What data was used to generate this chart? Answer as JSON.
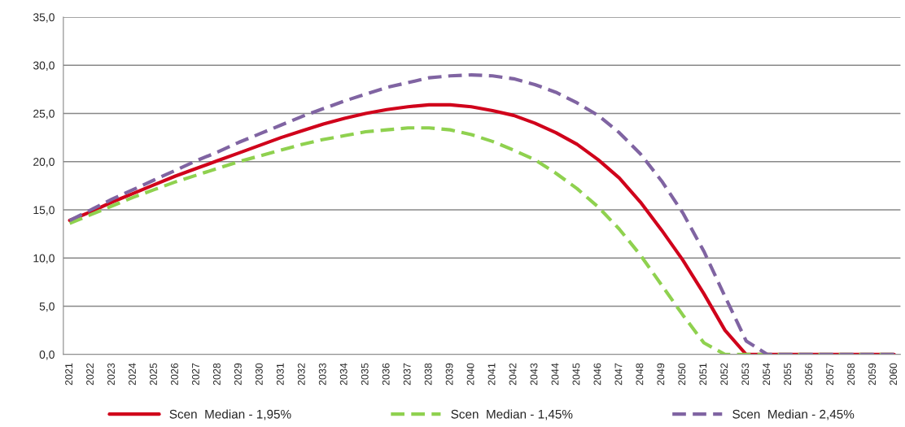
{
  "chart_data": {
    "type": "line",
    "categories": [
      "2021",
      "2022",
      "2023",
      "2024",
      "2025",
      "2026",
      "2027",
      "2028",
      "2029",
      "2030",
      "2031",
      "2032",
      "2033",
      "2034",
      "2035",
      "2036",
      "2037",
      "2038",
      "2039",
      "2040",
      "2041",
      "2042",
      "2043",
      "2044",
      "2045",
      "2046",
      "2047",
      "2048",
      "2049",
      "2050",
      "2051",
      "2052",
      "2053",
      "2054",
      "2055",
      "2056",
      "2057",
      "2058",
      "2059",
      "2060"
    ],
    "series": [
      {
        "name": "Scen  Median - 1,95%",
        "color": "#d0021b",
        "line_style": "solid",
        "values": [
          13.9,
          14.8,
          15.8,
          16.7,
          17.6,
          18.5,
          19.3,
          20.1,
          20.9,
          21.7,
          22.5,
          23.2,
          23.9,
          24.5,
          25.0,
          25.4,
          25.7,
          25.9,
          25.9,
          25.7,
          25.3,
          24.8,
          24.0,
          23.0,
          21.8,
          20.2,
          18.3,
          15.8,
          12.9,
          9.8,
          6.3,
          2.5,
          0,
          0,
          0,
          0,
          0,
          0,
          0,
          0
        ]
      },
      {
        "name": "Scen  Median - 1,45%",
        "color": "#8fd14f",
        "line_style": "dashed",
        "values": [
          13.6,
          14.5,
          15.4,
          16.3,
          17.1,
          17.9,
          18.6,
          19.3,
          20.0,
          20.6,
          21.2,
          21.8,
          22.3,
          22.7,
          23.1,
          23.3,
          23.5,
          23.5,
          23.3,
          22.8,
          22.1,
          21.2,
          20.2,
          18.8,
          17.2,
          15.3,
          13.0,
          10.3,
          7.2,
          4.1,
          1.2,
          0,
          0,
          0,
          0,
          0,
          0,
          0,
          0,
          0
        ]
      },
      {
        "name": "Scen  Median - 2,45%",
        "color": "#8064a2",
        "line_style": "dashed",
        "values": [
          13.9,
          15.0,
          16.1,
          17.1,
          18.1,
          19.1,
          20.1,
          21.0,
          22.0,
          22.9,
          23.8,
          24.7,
          25.5,
          26.3,
          27.0,
          27.7,
          28.2,
          28.7,
          28.9,
          29.0,
          28.9,
          28.6,
          28.0,
          27.2,
          26.1,
          24.8,
          23.0,
          20.8,
          18.0,
          14.7,
          10.7,
          6.0,
          1.4,
          0,
          0,
          0,
          0,
          0,
          0,
          0
        ]
      }
    ],
    "ylim": [
      0,
      35
    ],
    "yticks": [
      {
        "value": 0,
        "label": "0,0"
      },
      {
        "value": 5,
        "label": "5,0"
      },
      {
        "value": 10,
        "label": "10,0"
      },
      {
        "value": 15,
        "label": "15,0"
      },
      {
        "value": 20,
        "label": "20,0"
      },
      {
        "value": 25,
        "label": "25,0"
      },
      {
        "value": 30,
        "label": "30,0"
      },
      {
        "value": 35,
        "label": "35,0"
      }
    ],
    "grid": "y",
    "legend": "bottom",
    "marker": "none"
  }
}
